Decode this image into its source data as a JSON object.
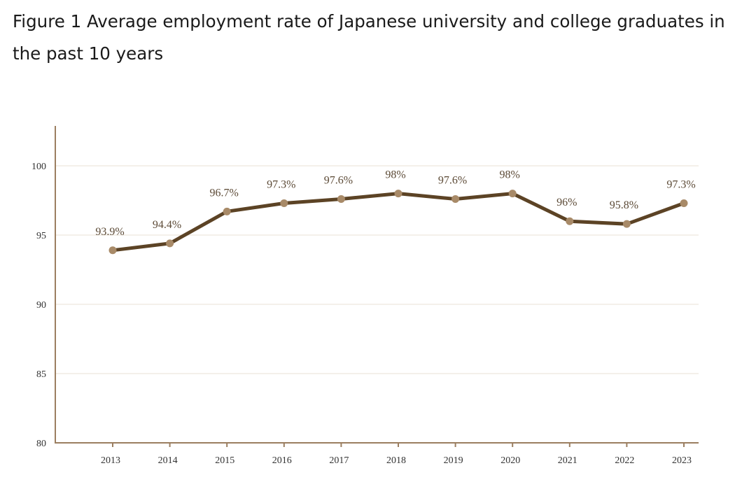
{
  "title": "Figure 1 Average employment rate of Japanese university and college graduates in the past 10 years",
  "chart_data": {
    "type": "line",
    "title": "Figure 1 Average employment rate of Japanese university and college graduates in the past 10 years",
    "xlabel": "",
    "ylabel": "",
    "categories": [
      "2013",
      "2014",
      "2015",
      "2016",
      "2017",
      "2018",
      "2019",
      "2020",
      "2021",
      "2022",
      "2023"
    ],
    "values": [
      93.9,
      94.4,
      96.7,
      97.3,
      97.6,
      98,
      97.6,
      98,
      96,
      95.8,
      97.3
    ],
    "data_labels": [
      "93.9%",
      "94.4%",
      "96.7%",
      "97.3%",
      "97.6%",
      "98%",
      "97.6%",
      "98%",
      "96%",
      "95.8%",
      "97.3%"
    ],
    "ylim": [
      80,
      103
    ],
    "yticks": [
      80,
      85,
      90,
      95,
      100
    ],
    "ytick_labels": [
      "80",
      "85",
      "90",
      "95",
      "100"
    ],
    "grid": true,
    "legend": "none",
    "colors": {
      "line": "#5c4325",
      "marker": "#a88a68",
      "axis": "#9b7e60",
      "grid": "#e8e2d6",
      "label": "#5c4a36"
    }
  }
}
